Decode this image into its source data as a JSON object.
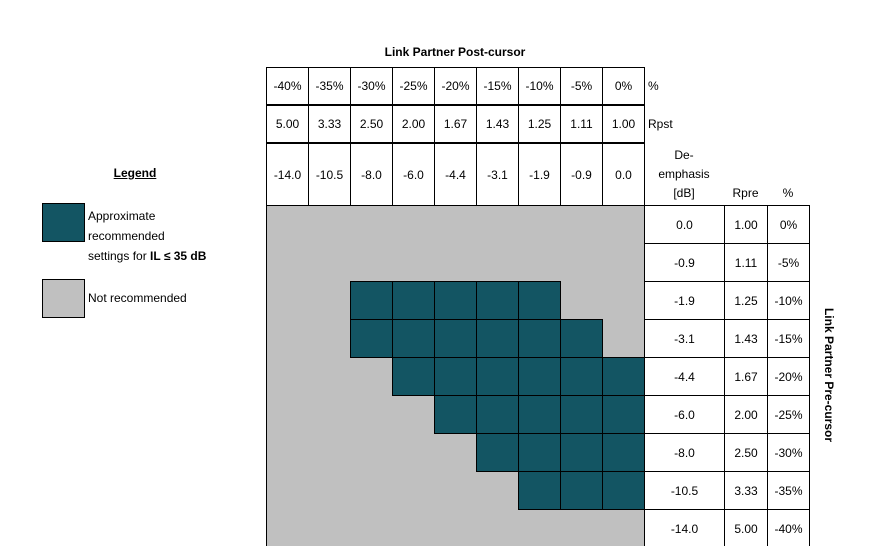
{
  "title_post": "Link Partner Post-cursor",
  "title_pre": "Link Partner Pre-cursor",
  "legend": {
    "title": "Legend",
    "recommended_text_1": "Approximate",
    "recommended_text_2": "recommended",
    "recommended_text_3": "settings for ",
    "recommended_text_bold": "IL ≤ 35 dB",
    "not_recommended_text": "Not recommended"
  },
  "colors": {
    "recommended": "#135563",
    "not_recommended": "#c0c0c0"
  },
  "post_headers": {
    "percent_label": "%",
    "rpst_label": "Rpst",
    "percent": [
      "-40%",
      "-35%",
      "-30%",
      "-25%",
      "-20%",
      "-15%",
      "-10%",
      "-5%",
      "0%"
    ],
    "rpst": [
      "5.00",
      "3.33",
      "2.50",
      "2.00",
      "1.67",
      "1.43",
      "1.25",
      "1.11",
      "1.00"
    ],
    "deemphasis": [
      "-14.0",
      "-10.5",
      "-8.0",
      "-6.0",
      "-4.4",
      "-3.1",
      "-1.9",
      "-0.9",
      "0.0"
    ]
  },
  "pre_headers": {
    "deemph_label_1": "De-",
    "deemph_label_2": "emphasis",
    "deemph_label_3": "[dB]",
    "rpre_label": "Rpre",
    "percent_label": "%",
    "deemphasis": [
      "0.0",
      "-0.9",
      "-1.9",
      "-3.1",
      "-4.4",
      "-6.0",
      "-8.0",
      "-10.5",
      "-14.0"
    ],
    "rpre": [
      "1.00",
      "1.11",
      "1.25",
      "1.43",
      "1.67",
      "2.00",
      "2.50",
      "3.33",
      "5.00"
    ],
    "percent": [
      "0%",
      "-5%",
      "-10%",
      "-15%",
      "-20%",
      "-25%",
      "-30%",
      "-35%",
      "-40%"
    ]
  },
  "recommended": [
    [
      0,
      0,
      0,
      0,
      0,
      0,
      0,
      0,
      0
    ],
    [
      0,
      0,
      0,
      0,
      0,
      0,
      0,
      0,
      0
    ],
    [
      0,
      0,
      1,
      1,
      1,
      1,
      1,
      0,
      0
    ],
    [
      0,
      0,
      1,
      1,
      1,
      1,
      1,
      1,
      0
    ],
    [
      0,
      0,
      0,
      1,
      1,
      1,
      1,
      1,
      1
    ],
    [
      0,
      0,
      0,
      0,
      1,
      1,
      1,
      1,
      1
    ],
    [
      0,
      0,
      0,
      0,
      0,
      1,
      1,
      1,
      1
    ],
    [
      0,
      0,
      0,
      0,
      0,
      0,
      1,
      1,
      1
    ],
    [
      0,
      0,
      0,
      0,
      0,
      0,
      0,
      0,
      0
    ]
  ]
}
